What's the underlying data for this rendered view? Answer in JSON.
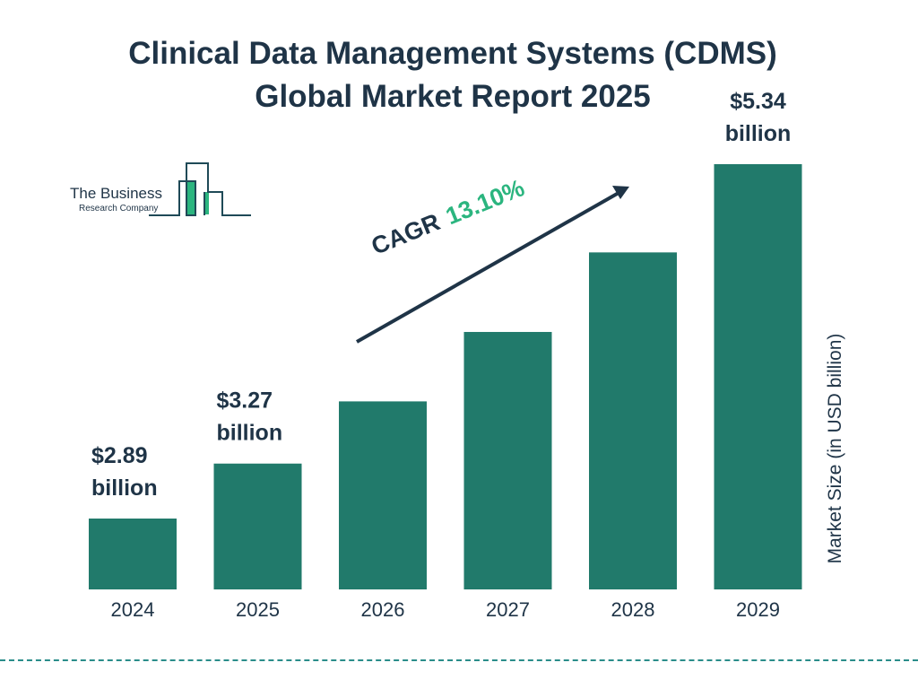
{
  "title_line1": "Clinical Data Management Systems (CDMS)",
  "title_line2": "Global Market Report 2025",
  "logo": {
    "line1": "The Business",
    "line2": "Research Company"
  },
  "cagr": {
    "label": "CAGR",
    "value": "13.10%"
  },
  "colors": {
    "bar": "#217a6b",
    "text": "#1f3447",
    "cagr": "#2bb57f",
    "divider": "#2a8d8a"
  },
  "chart_data": {
    "type": "bar",
    "title": "Clinical Data Management Systems (CDMS) Global Market Report 2025",
    "categories": [
      "2024",
      "2025",
      "2026",
      "2027",
      "2028",
      "2029"
    ],
    "values": [
      2.89,
      3.27,
      3.7,
      4.18,
      4.73,
      5.34
    ],
    "data_labels": [
      {
        "index": 0,
        "line1": "$2.89",
        "line2": "billion"
      },
      {
        "index": 1,
        "line1": "$3.27",
        "line2": "billion"
      },
      {
        "index": 5,
        "line1": "$5.34",
        "line2": "billion"
      }
    ],
    "xlabel": "",
    "ylabel": "Market Size (in USD billion)",
    "grid": false,
    "legend": "none"
  }
}
